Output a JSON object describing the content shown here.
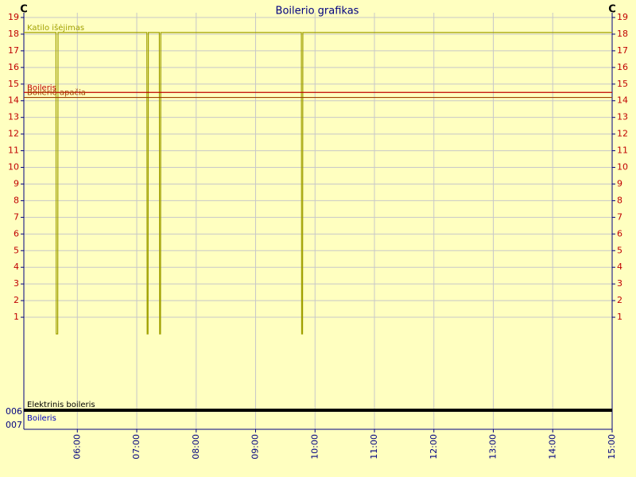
{
  "chart_data": {
    "type": "line",
    "title": "Boilerio grafikas",
    "y_label": "C",
    "y2_label": "C",
    "xlim": [
      5.1,
      15.0
    ],
    "xticks": [
      {
        "value": 6,
        "label": "06:00"
      },
      {
        "value": 7,
        "label": "07:00"
      },
      {
        "value": 8,
        "label": "08:00"
      },
      {
        "value": 9,
        "label": "09:00"
      },
      {
        "value": 10,
        "label": "10:00"
      },
      {
        "value": 11,
        "label": "11:00"
      },
      {
        "value": 12,
        "label": "12:00"
      },
      {
        "value": 13,
        "label": "13:00"
      },
      {
        "value": 14,
        "label": "14:00"
      },
      {
        "value": 15,
        "label": "15:00"
      }
    ],
    "ylim": [
      0,
      19
    ],
    "yticks": [
      1,
      2,
      3,
      4,
      5,
      6,
      7,
      8,
      9,
      10,
      11,
      12,
      13,
      14,
      15,
      16,
      17,
      18,
      19
    ],
    "y2lim": [
      0,
      19
    ],
    "y2ticks": [
      1,
      2,
      3,
      4,
      5,
      6,
      7,
      8,
      9,
      10,
      11,
      12,
      13,
      14,
      15,
      16,
      17,
      18,
      19
    ],
    "grid": true,
    "series": [
      {
        "name": "Katilo išėjimas",
        "color": "#a0a000",
        "x": [
          5.1,
          5.64,
          5.645,
          5.67,
          5.675,
          7.17,
          7.175,
          7.19,
          7.195,
          7.38,
          7.385,
          7.4,
          7.405,
          9.77,
          9.775,
          9.79,
          9.795,
          15.0
        ],
        "values": [
          18.1,
          18.1,
          0,
          0,
          18.1,
          18.1,
          0,
          0,
          18.1,
          18.1,
          0,
          0,
          18.1,
          18.1,
          0,
          0,
          18.1,
          18.1
        ]
      },
      {
        "name": "Boileris",
        "color": "#c00000",
        "x": [
          5.1,
          15.0
        ],
        "values": [
          14.5,
          14.5
        ]
      },
      {
        "name": "Boilerio apačia",
        "color": "#a04000",
        "x": [
          5.1,
          15.0
        ],
        "values": [
          14.2,
          14.2
        ]
      }
    ],
    "digital": {
      "labels": [
        "006",
        "007"
      ],
      "series": [
        {
          "name": "Elektrinis boileris",
          "color": "#000000",
          "x": [
            5.1,
            15.0
          ],
          "values": [
            1,
            1
          ]
        },
        {
          "name": "Boileris",
          "color": "#0000c0"
        }
      ]
    }
  }
}
